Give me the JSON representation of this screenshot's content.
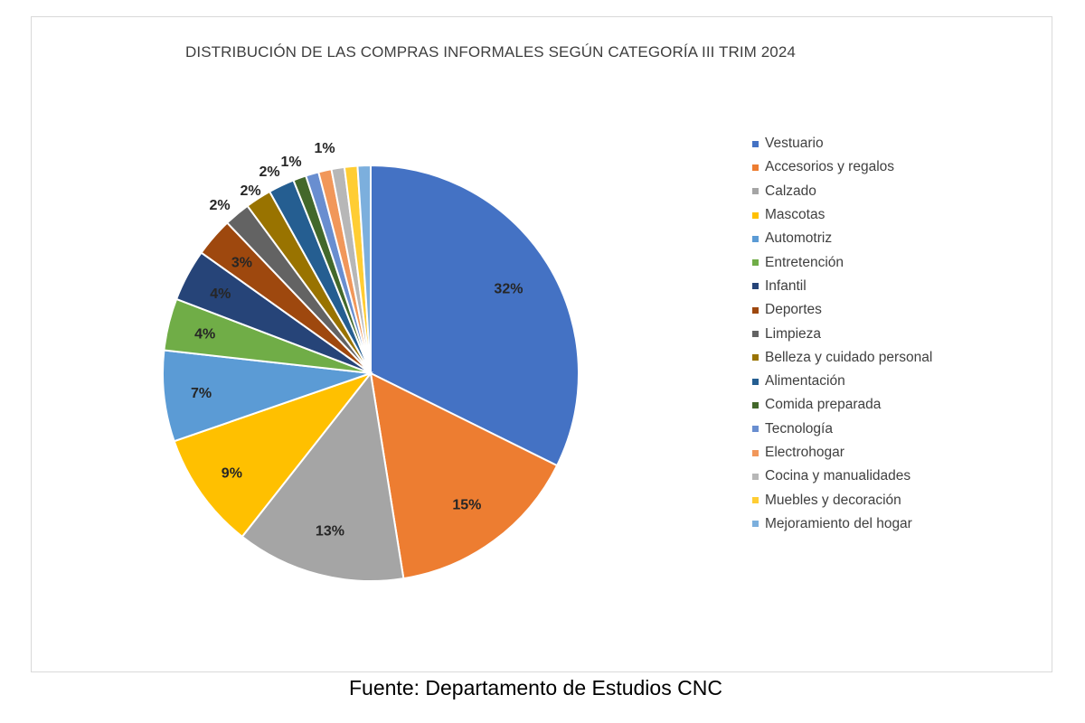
{
  "chart_data": {
    "type": "pie",
    "title": "DISTRIBUCIÓN DE LAS COMPRAS INFORMALES SEGÚN CATEGORÍA III TRIM 2024",
    "legend_position": "right",
    "slices": [
      {
        "label": "Vestuario",
        "value": 32,
        "display": "32%",
        "color": "#4472C4"
      },
      {
        "label": "Accesorios y regalos",
        "value": 15,
        "display": "15%",
        "color": "#ED7D31"
      },
      {
        "label": "Calzado",
        "value": 13,
        "display": "13%",
        "color": "#A5A5A5"
      },
      {
        "label": "Mascotas",
        "value": 9,
        "display": "9%",
        "color": "#FFC000"
      },
      {
        "label": "Automotriz",
        "value": 7,
        "display": "7%",
        "color": "#5B9BD5"
      },
      {
        "label": "Entretención",
        "value": 4,
        "display": "4%",
        "color": "#70AD47"
      },
      {
        "label": "Infantil",
        "value": 4,
        "display": "4%",
        "color": "#264478"
      },
      {
        "label": "Deportes",
        "value": 3,
        "display": "3%",
        "color": "#9E480E"
      },
      {
        "label": "Limpieza",
        "value": 2,
        "display": "2%",
        "color": "#636363"
      },
      {
        "label": "Belleza y cuidado personal",
        "value": 2,
        "display": "2%",
        "color": "#997300"
      },
      {
        "label": "Alimentación",
        "value": 2,
        "display": "2%",
        "color": "#255E91"
      },
      {
        "label": "Comida preparada",
        "value": 1,
        "display": "1%",
        "color": "#43682B"
      },
      {
        "label": "Tecnología",
        "value": 1,
        "display": "",
        "color": "#698ED0"
      },
      {
        "label": "Electrohogar",
        "value": 1,
        "display": "",
        "color": "#F1975A"
      },
      {
        "label": "Cocina y manualidades",
        "value": 1,
        "display": "1%",
        "color": "#B7B7B7"
      },
      {
        "label": "Muebles y decoración",
        "value": 1,
        "display": "",
        "color": "#FFCD33"
      },
      {
        "label": "Mejoramiento del hogar",
        "value": 1,
        "display": "",
        "color": "#7CAFDD"
      }
    ]
  },
  "source": "Fuente: Departamento de Estudios CNC"
}
